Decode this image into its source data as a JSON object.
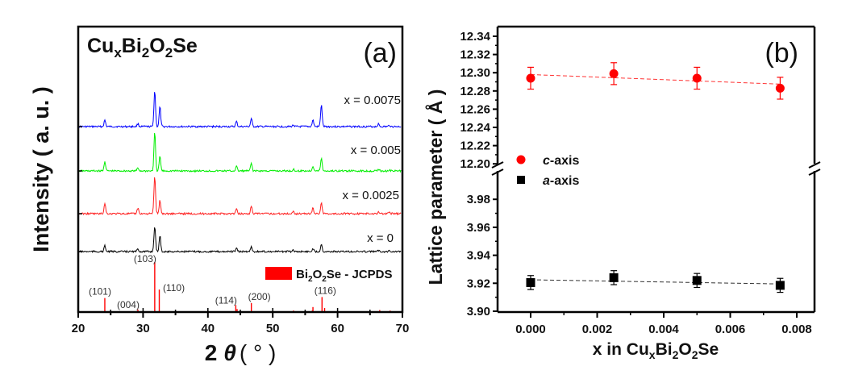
{
  "chart_data": [
    {
      "panel": "(a)",
      "type": "line",
      "title": "CuxBi2O2Se",
      "title_parts": {
        "base1": "Cu",
        "sub1": "x",
        "base2": "Bi",
        "sub2": "2",
        "base3": "O",
        "sub3": "2",
        "base4": "Se"
      },
      "panel_label": "(a)",
      "xlabel": "2 θ ( ° )",
      "xlabel_parts": {
        "num": "2",
        "theta": "θ",
        "unit": "( ° )"
      },
      "ylabel": "Intensity ( a. u. )",
      "xlim": [
        20,
        70
      ],
      "xticks": [
        20,
        30,
        40,
        50,
        60,
        70
      ],
      "grid": false,
      "peaks_two_theta": [
        24.1,
        29.2,
        31.8,
        32.6,
        44.4,
        46.7,
        53.2,
        56.2,
        57.5,
        66.3,
        68.0
      ],
      "series": [
        {
          "name": "x = 0.0075",
          "color": "#0000ff",
          "relative_peak_heights": [
            0.18,
            0.08,
            1.0,
            0.55,
            0.14,
            0.22,
            0.05,
            0.18,
            0.6,
            0.07,
            0.04
          ]
        },
        {
          "name": "x = 0.005",
          "color": "#00ee00",
          "relative_peak_heights": [
            0.25,
            0.08,
            1.0,
            0.38,
            0.12,
            0.2,
            0.04,
            0.13,
            0.33,
            0.05,
            0.03
          ]
        },
        {
          "name": "x = 0.0025",
          "color": "#ff2020",
          "relative_peak_heights": [
            0.28,
            0.15,
            1.0,
            0.35,
            0.12,
            0.19,
            0.06,
            0.15,
            0.3,
            0.05,
            0.05
          ]
        },
        {
          "name": "x = 0",
          "color": "#000000",
          "relative_peak_heights": [
            0.22,
            0.1,
            1.0,
            0.63,
            0.12,
            0.2,
            0.05,
            0.12,
            0.3,
            0.05,
            0.05
          ]
        }
      ],
      "reference": {
        "legend": "Bi2O2Se - JCPDS",
        "legend_parts": {
          "a": "Bi",
          "s1": "2",
          "b": "O",
          "s2": "2",
          "c": "Se - JCPDS"
        },
        "color": "#ff0000",
        "lines": [
          {
            "two_theta": 24.1,
            "intensity": 0.28,
            "hkl": "(101)"
          },
          {
            "two_theta": 29.2,
            "intensity": 0.05,
            "hkl": "(004)"
          },
          {
            "two_theta": 31.8,
            "intensity": 1.0,
            "hkl": "(103)"
          },
          {
            "two_theta": 32.5,
            "intensity": 0.45,
            "hkl": "(110)"
          },
          {
            "two_theta": 44.3,
            "intensity": 0.14,
            "hkl": "(114)"
          },
          {
            "two_theta": 44.5,
            "intensity": 0.06,
            "hkl": ""
          },
          {
            "two_theta": 46.7,
            "intensity": 0.18,
            "hkl": "(200)"
          },
          {
            "two_theta": 53.2,
            "intensity": 0.03,
            "hkl": ""
          },
          {
            "two_theta": 56.2,
            "intensity": 0.1,
            "hkl": ""
          },
          {
            "two_theta": 56.1,
            "intensity": 0.03,
            "hkl": ""
          },
          {
            "two_theta": 57.6,
            "intensity": 0.3,
            "hkl": "(116)"
          },
          {
            "two_theta": 58.0,
            "intensity": 0.08,
            "hkl": ""
          },
          {
            "two_theta": 66.5,
            "intensity": 0.04,
            "hkl": ""
          },
          {
            "two_theta": 68.1,
            "intensity": 0.03,
            "hkl": ""
          }
        ]
      }
    },
    {
      "panel": "(b)",
      "type": "scatter",
      "panel_label": "(b)",
      "xlabel": "x in CuxBi2O2Se",
      "xlabel_parts": {
        "pre": "x in Cu",
        "sub1": "x",
        "b": "Bi",
        "sub2": "2",
        "c": "O",
        "sub3": "2",
        "d": "Se"
      },
      "ylabel": "Lattice parameter ( Å )",
      "xlim": [
        -0.001,
        0.0085
      ],
      "xticks": [
        "0.000",
        "0.002",
        "0.004",
        "0.006",
        "0.008"
      ],
      "ylim_upper": [
        12.2,
        12.34
      ],
      "yticks_upper": [
        "12.20",
        "12.22",
        "12.24",
        "12.26",
        "12.28",
        "12.30",
        "12.32",
        "12.34"
      ],
      "ylim_lower": [
        3.9,
        3.99
      ],
      "yticks_lower": [
        "3.90",
        "3.92",
        "3.94",
        "3.96",
        "3.98"
      ],
      "axis_break": true,
      "grid": false,
      "legend_position": "center-left",
      "series": [
        {
          "name": "c-axis",
          "italic": "c",
          "rest": "-axis",
          "color": "#ff0000",
          "marker": "circle",
          "x": [
            0.0,
            0.0025,
            0.005,
            0.0075
          ],
          "y": [
            12.294,
            12.299,
            12.294,
            12.283
          ],
          "yerr": [
            0.012,
            0.012,
            0.012,
            0.012
          ],
          "fit": [
            12.298,
            12.2875
          ]
        },
        {
          "name": "a-axis",
          "italic": "a",
          "rest": "-axis",
          "color": "#000000",
          "marker": "square",
          "x": [
            0.0,
            0.0025,
            0.005,
            0.0075
          ],
          "y": [
            3.9205,
            3.924,
            3.922,
            3.9185
          ],
          "yerr": [
            0.005,
            0.005,
            0.005,
            0.005
          ],
          "fit": [
            3.9225,
            3.9195
          ]
        }
      ]
    }
  ]
}
